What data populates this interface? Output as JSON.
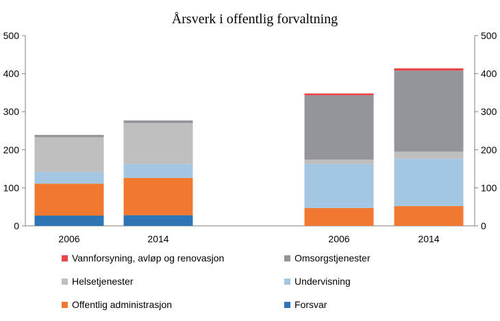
{
  "chart_data": {
    "type": "bar",
    "stacked": true,
    "title": "Årsverk i offentlig forvaltning",
    "categories": [
      "2006",
      "2014",
      "2006",
      "2014"
    ],
    "groups": [
      {
        "categories": [
          0,
          1
        ],
        "axis": "left"
      },
      {
        "categories": [
          2,
          3
        ],
        "axis": "right"
      }
    ],
    "ylim": [
      0,
      500
    ],
    "yticks": [
      0,
      100,
      200,
      300,
      400,
      500
    ],
    "ylim_right": [
      0,
      500
    ],
    "series": [
      {
        "name": "Forsvar",
        "color": "#2e75b6",
        "values": [
          27,
          28,
          0,
          0
        ]
      },
      {
        "name": "Offentlig administrasjon",
        "color": "#f07830",
        "values": [
          84,
          98,
          47,
          52
        ]
      },
      {
        "name": "Undervisning",
        "color": "#a3c7e3",
        "values": [
          30,
          37,
          115,
          124
        ]
      },
      {
        "name": "Helsetjenester",
        "color": "#bfbfbf",
        "values": [
          92,
          107,
          12,
          19
        ]
      },
      {
        "name": "Omsorgstjenester",
        "color": "#939598",
        "values": [
          6,
          7,
          169,
          213
        ]
      },
      {
        "name": "Vannforsyning, avløp og renovasjon",
        "color": "#e8464a",
        "values": [
          0,
          0,
          5,
          6
        ]
      }
    ],
    "legend": {
      "placement": "bottom",
      "order": [
        "Vannforsyning, avløp og renovasjon",
        "Omsorgstjenester",
        "Helsetjenester",
        "Undervisning",
        "Offentlig administrasjon",
        "Forsvar"
      ]
    },
    "grid": false
  }
}
